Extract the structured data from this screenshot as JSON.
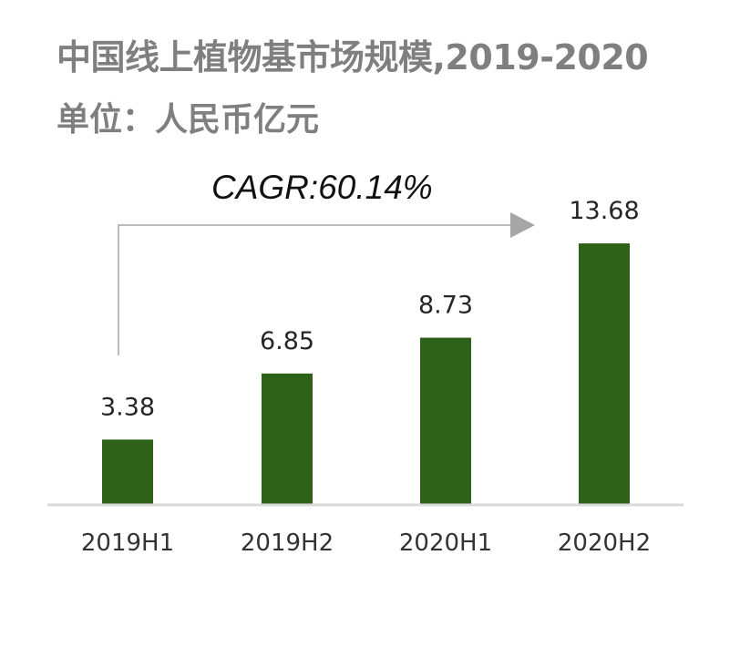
{
  "chart_data": {
    "type": "bar",
    "title": "中国线上植物基市场规模,2019-2020",
    "subtitle": "单位：人民币亿元",
    "categories": [
      "2019H1",
      "2019H2",
      "2020H1",
      "2020H2"
    ],
    "values": [
      3.38,
      6.85,
      8.73,
      13.68
    ],
    "value_labels": [
      "3.38",
      "6.85",
      "8.73",
      "13.68"
    ],
    "annotation": "CAGR:60.14%",
    "grid": false,
    "bar_color": "#2d6118",
    "axis_color": "#d9d9d9",
    "arrow_color": "#a6a6a6"
  }
}
